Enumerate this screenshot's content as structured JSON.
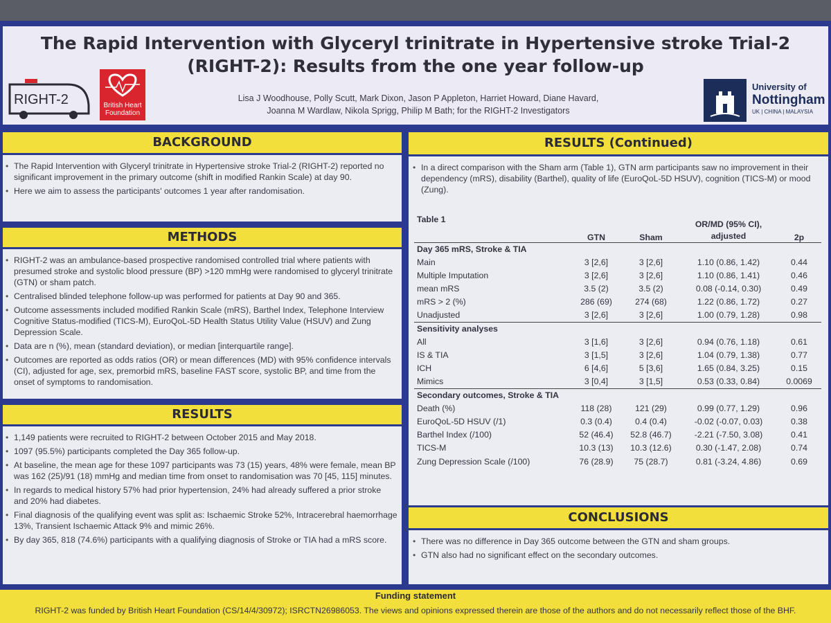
{
  "header": {
    "title_line1": "The Rapid Intervention with Glyceryl trinitrate in Hypertensive stroke Trial-2",
    "title_line2": "(RIGHT-2): Results from the one year follow-up",
    "authors_line1": "Lisa J Woodhouse, Polly Scutt, Mark Dixon, Jason P Appleton, Harriet Howard, Diane Havard,",
    "authors_line2": "Joanna M Wardlaw, Nikola Sprigg, Philip M Bath; for the RIGHT-2 Investigators",
    "logo_right2_text": "RIGHT-2",
    "logo_bhf_line1": "British Heart",
    "logo_bhf_line2": "Foundation",
    "logo_uon_line1": "University of",
    "logo_uon_line2": "Nottingham",
    "logo_uon_line3": "UK | CHINA | MALAYSIA"
  },
  "background": {
    "heading": "BACKGROUND",
    "items": [
      "The Rapid Intervention with Glyceryl trinitrate in Hypertensive stroke Trial-2 (RIGHT-2) reported no significant improvement in the primary outcome (shift in modified Rankin Scale) at day 90.",
      "Here we aim to assess the participants' outcomes 1 year after randomisation."
    ]
  },
  "methods": {
    "heading": "METHODS",
    "items": [
      "RIGHT-2 was an ambulance-based prospective randomised controlled trial where patients with presumed stroke and systolic blood pressure (BP) >120 mmHg were randomised to glyceryl trinitrate (GTN) or sham patch.",
      "Centralised blinded telephone follow-up was performed for patients at Day 90 and 365.",
      "Outcome assessments included modified Rankin Scale (mRS), Barthel Index, Telephone Interview Cognitive Status-modified (TICS-M), EuroQoL-5D Health Status Utility Value (HSUV) and Zung Depression Scale.",
      "Data are n (%), mean (standard deviation), or median [interquartile range].",
      "Outcomes are reported as odds ratios (OR) or mean differences (MD) with 95% confidence intervals (CI), adjusted for age, sex, premorbid mRS, baseline FAST score, systolic BP, and time from the onset of symptoms to randomisation."
    ]
  },
  "results": {
    "heading": "RESULTS",
    "items": [
      "1,149 patients were recruited to RIGHT-2 between October 2015 and May 2018.",
      "1097 (95.5%) participants completed the Day 365 follow-up.",
      "At baseline, the mean age for these 1097 participants was 73 (15) years, 48% were female, mean BP was 162 (25)/91 (18) mmHg and median time from onset to randomisation was 70 [45, 115] minutes.",
      "In regards to medical history 57% had prior hypertension, 24% had already suffered a prior stroke and 20% had diabetes.",
      "Final diagnosis of the qualifying event was split as: Ischaemic Stroke 52%, Intracerebral haemorrhage 13%, Transient Ischaemic Attack 9% and mimic 26%.",
      "By day 365, 818 (74.6%) participants with a qualifying diagnosis of Stroke or TIA had a mRS score."
    ]
  },
  "results_continued": {
    "heading": "RESULTS (Continued)",
    "items": [
      "In a direct comparison with the Sham arm (Table 1), GTN arm participants saw no improvement in their dependency (mRS), disability (Barthel), quality of life (EuroQoL-5D HSUV), cognition (TICS-M) or mood (Zung)."
    ]
  },
  "table1": {
    "caption": "Table 1",
    "col_gtn": "GTN",
    "col_sham": "Sham",
    "col_or_line1": "OR/MD (95% CI),",
    "col_or_line2": "adjusted",
    "col_2p": "2p",
    "groups": [
      {
        "title": "Day 365 mRS, Stroke & TIA",
        "rows": [
          {
            "label": "Main",
            "gtn": "3 [2,6]",
            "sham": "3 [2,6]",
            "or": "1.10 (0.86, 1.42)",
            "p": "0.44"
          },
          {
            "label": "Multiple Imputation",
            "gtn": "3 [2,6]",
            "sham": "3 [2,6]",
            "or": "1.10 (0.86, 1.41)",
            "p": "0.46"
          },
          {
            "label": "mean mRS",
            "gtn": "3.5 (2)",
            "sham": "3.5 (2)",
            "or": "0.08 (-0.14, 0.30)",
            "p": "0.49"
          },
          {
            "label": "mRS > 2 (%)",
            "gtn": "286 (69)",
            "sham": "274 (68)",
            "or": "1.22 (0.86, 1.72)",
            "p": "0.27"
          },
          {
            "label": "Unadjusted",
            "gtn": "3 [2,6]",
            "sham": "3 [2,6]",
            "or": "1.00 (0.79, 1.28)",
            "p": "0.98"
          }
        ]
      },
      {
        "title": "Sensitivity analyses",
        "rows": [
          {
            "label": "All",
            "gtn": "3 [1,6]",
            "sham": "3 [2,6]",
            "or": "0.94 (0.76, 1.18)",
            "p": "0.61"
          },
          {
            "label": "IS & TIA",
            "gtn": "3 [1,5]",
            "sham": "3 [2,6]",
            "or": "1.04 (0.79, 1.38)",
            "p": "0.77"
          },
          {
            "label": "ICH",
            "gtn": "6 [4,6]",
            "sham": "5 [3,6]",
            "or": "1.65 (0.84, 3.25)",
            "p": "0.15"
          },
          {
            "label": "Mimics",
            "gtn": "3 [0,4]",
            "sham": "3 [1,5]",
            "or": "0.53 (0.33, 0.84)",
            "p": "0.0069"
          }
        ]
      },
      {
        "title": "Secondary outcomes, Stroke & TIA",
        "rows": [
          {
            "label": "Death (%)",
            "gtn": "118 (28)",
            "sham": "121 (29)",
            "or": "0.99 (0.77, 1.29)",
            "p": "0.96"
          },
          {
            "label": "EuroQoL-5D HSUV (/1)",
            "gtn": "0.3 (0.4)",
            "sham": "0.4 (0.4)",
            "or": "-0.02 (-0.07, 0.03)",
            "p": "0.38"
          },
          {
            "label": "Barthel Index (/100)",
            "gtn": "52 (46.4)",
            "sham": "52.8 (46.7)",
            "or": "-2.21 (-7.50, 3.08)",
            "p": "0.41"
          },
          {
            "label": "TICS-M",
            "gtn": "10.3 (13)",
            "sham": "10.3 (12.6)",
            "or": "0.30 (-1.47, 2.08)",
            "p": "0.74"
          },
          {
            "label": "Zung Depression Scale (/100)",
            "gtn": "76 (28.9)",
            "sham": "75 (28.7)",
            "or": "0.81 (-3.24, 4.86)",
            "p": "0.69"
          }
        ]
      }
    ]
  },
  "conclusions": {
    "heading": "CONCLUSIONS",
    "items": [
      "There was no difference in Day 365 outcome between the GTN and sham groups.",
      "GTN also had no significant effect on the secondary outcomes."
    ]
  },
  "funding": {
    "title": "Funding statement",
    "text": "RIGHT-2 was funded by British Heart Foundation (CS/14/4/30972); ISRCTN26986053. The views and opinions expressed therein are those of the authors and do not necessarily reflect those of the BHF."
  },
  "colors": {
    "poster_blue": "#2b3a8f",
    "section_yellow": "#f2df3c",
    "panel_bg": "#ececf3",
    "bhf_red": "#d9262e",
    "uon_navy": "#1c2d5a"
  }
}
